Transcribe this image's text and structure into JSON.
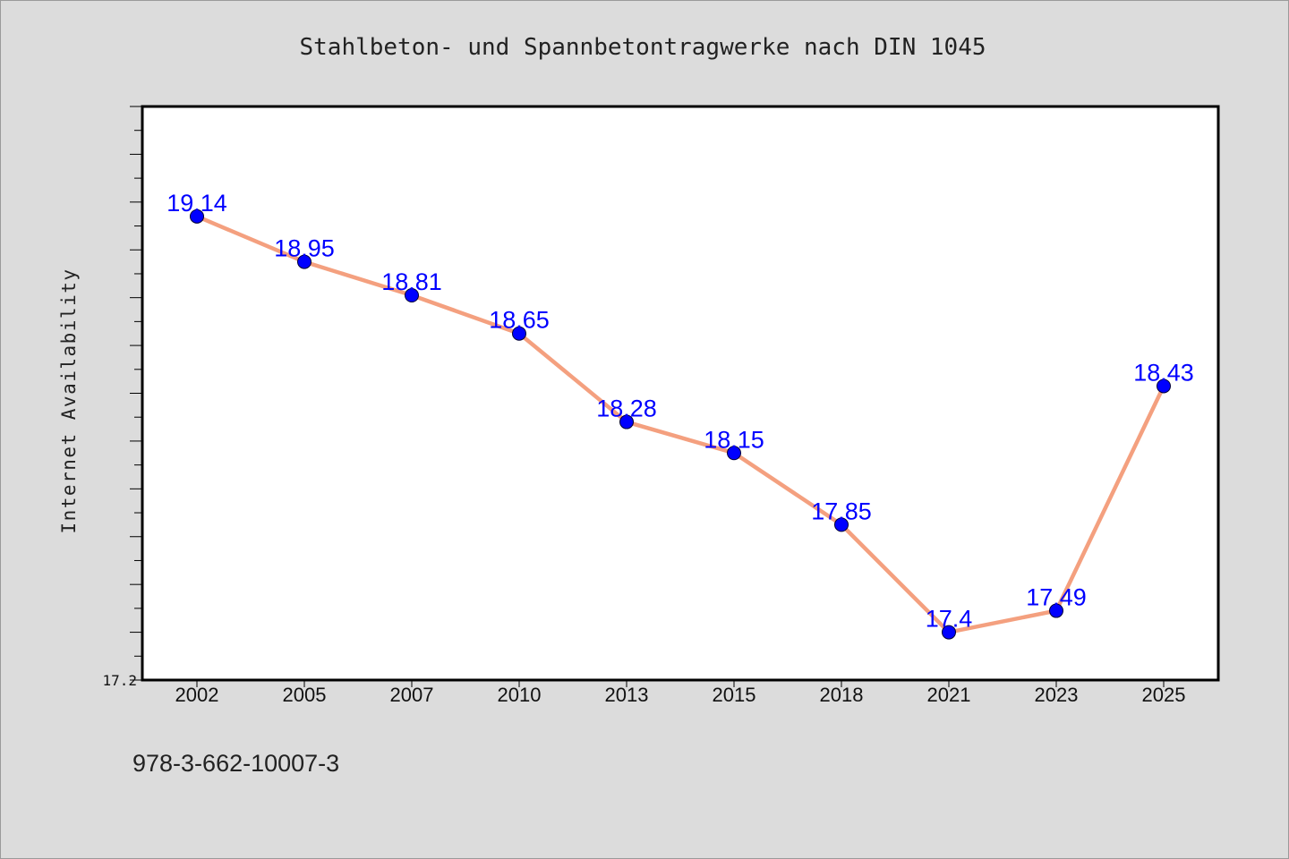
{
  "chart_data": {
    "type": "line",
    "title": "Stahlbeton- und Spannbetontragwerke nach DIN 1045",
    "xlabel": "",
    "ylabel": "Internet Availability",
    "categories": [
      "2002",
      "2005",
      "2007",
      "2010",
      "2013",
      "2015",
      "2018",
      "2021",
      "2023",
      "2025"
    ],
    "series": [
      {
        "values": [
          19.14,
          18.95,
          18.81,
          18.65,
          18.28,
          18.15,
          17.85,
          17.4,
          17.49,
          18.43
        ],
        "labels": [
          "19.14",
          "18.95",
          "18.81",
          "18.65",
          "18.28",
          "18.15",
          "17.85",
          "17.4",
          "17.49",
          "18.43"
        ],
        "line_color": "#f4a07f",
        "marker_color": "#0000ff"
      }
    ],
    "ylim": [
      17.2,
      19.6
    ],
    "y_tick_labels": [
      "17.2"
    ],
    "grid": false,
    "legend": "none"
  },
  "footer": {
    "isbn": "978-3-662-10007-3"
  }
}
